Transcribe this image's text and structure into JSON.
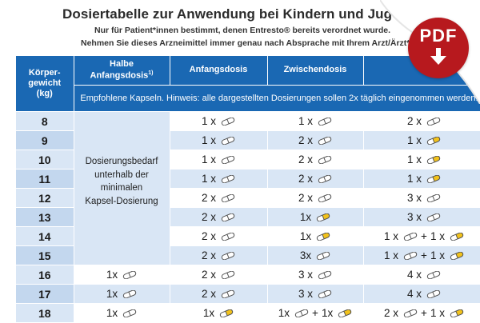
{
  "title": "Dosiertabelle zur Anwendung bei Kindern und Jugendlichen ab",
  "subtitle_1": "Nur für Patient*innen bestimmt, denen Entresto® bereits verordnet wurde.",
  "subtitle_2": "Nehmen Sie dieses Arzneimittel immer genau nach Absprache mit Ihrem Arzt/Ärzt*in e",
  "pdf_button": {
    "label": "PDF",
    "icon": "download-arrow-icon"
  },
  "colors": {
    "header_blue": "#1a68b3",
    "row_light": "#d9e6f5",
    "pdf_red": "#b7191e",
    "capsule_white": "#ffffff",
    "capsule_yellow": "#f2c21b"
  },
  "table": {
    "headers": [
      "Körper-gewicht (kg)",
      "Halbe Anfangsdosis",
      "Anfangsdosis",
      "Zwischendosis",
      ""
    ],
    "header_footnote": "1)",
    "weight_header_lines": [
      "Körper-",
      "gewicht",
      "(kg)"
    ],
    "half_dose_lines": [
      "Halbe",
      "Anfangsdosis"
    ],
    "note": "Empfohlene Kapseln. Hinweis: alle dargestellten Dosierungen sollen 2x täglich eingenommen werden.",
    "merged_note_lines": [
      "Dosierungsbedarf",
      "unterhalb der",
      "minimalen",
      "Kapsel-Dosierung"
    ],
    "rows": [
      {
        "weight": "8",
        "half": null,
        "start": [
          {
            "count": "1 x",
            "caps": "white"
          }
        ],
        "mid": [
          {
            "count": "1 x",
            "caps": "white"
          }
        ],
        "high": [
          {
            "count": "2 x",
            "caps": "white"
          }
        ]
      },
      {
        "weight": "9",
        "half": null,
        "start": [
          {
            "count": "1 x",
            "caps": "white"
          }
        ],
        "mid": [
          {
            "count": "2 x",
            "caps": "white"
          }
        ],
        "high": [
          {
            "count": "1 x",
            "caps": "yellow"
          }
        ]
      },
      {
        "weight": "10",
        "half": null,
        "start": [
          {
            "count": "1 x",
            "caps": "white"
          }
        ],
        "mid": [
          {
            "count": "2 x",
            "caps": "white"
          }
        ],
        "high": [
          {
            "count": "1 x",
            "caps": "yellow"
          }
        ]
      },
      {
        "weight": "11",
        "half": null,
        "start": [
          {
            "count": "1 x",
            "caps": "white"
          }
        ],
        "mid": [
          {
            "count": "2 x",
            "caps": "white"
          }
        ],
        "high": [
          {
            "count": "1 x",
            "caps": "yellow"
          }
        ]
      },
      {
        "weight": "12",
        "half": null,
        "start": [
          {
            "count": "2 x",
            "caps": "white"
          }
        ],
        "mid": [
          {
            "count": "2 x",
            "caps": "white"
          }
        ],
        "high": [
          {
            "count": "3 x",
            "caps": "white"
          }
        ]
      },
      {
        "weight": "13",
        "half": null,
        "start": [
          {
            "count": "2 x",
            "caps": "white"
          }
        ],
        "mid": [
          {
            "count": "1x",
            "caps": "yellow"
          }
        ],
        "high": [
          {
            "count": "3 x",
            "caps": "white"
          }
        ]
      },
      {
        "weight": "14",
        "half": null,
        "start": [
          {
            "count": "2 x",
            "caps": "white"
          }
        ],
        "mid": [
          {
            "count": "1x",
            "caps": "yellow"
          }
        ],
        "high": [
          {
            "count": "1 x",
            "caps": "white"
          },
          {
            "count": "1 x",
            "caps": "yellow"
          }
        ]
      },
      {
        "weight": "15",
        "half": null,
        "start": [
          {
            "count": "2 x",
            "caps": "white"
          }
        ],
        "mid": [
          {
            "count": "3x",
            "caps": "white"
          }
        ],
        "high": [
          {
            "count": "1 x",
            "caps": "white"
          },
          {
            "count": "1 x",
            "caps": "yellow"
          }
        ]
      },
      {
        "weight": "16",
        "half": [
          {
            "count": "1x",
            "caps": "white"
          }
        ],
        "start": [
          {
            "count": "2 x",
            "caps": "white"
          }
        ],
        "mid": [
          {
            "count": "3 x",
            "caps": "white"
          }
        ],
        "high": [
          {
            "count": "4 x",
            "caps": "white"
          }
        ]
      },
      {
        "weight": "17",
        "half": [
          {
            "count": "1x",
            "caps": "white"
          }
        ],
        "start": [
          {
            "count": "2 x",
            "caps": "white"
          }
        ],
        "mid": [
          {
            "count": "3 x",
            "caps": "white"
          }
        ],
        "high": [
          {
            "count": "4 x",
            "caps": "white"
          }
        ]
      },
      {
        "weight": "18",
        "half": [
          {
            "count": "1x",
            "caps": "white"
          }
        ],
        "start": [
          {
            "count": "1x",
            "caps": "yellow"
          }
        ],
        "mid": [
          {
            "count": "1x",
            "caps": "white"
          },
          {
            "count": "1x",
            "caps": "yellow"
          }
        ],
        "high": [
          {
            "count": "2 x",
            "caps": "white"
          },
          {
            "count": "1 x",
            "caps": "yellow"
          }
        ]
      }
    ]
  }
}
